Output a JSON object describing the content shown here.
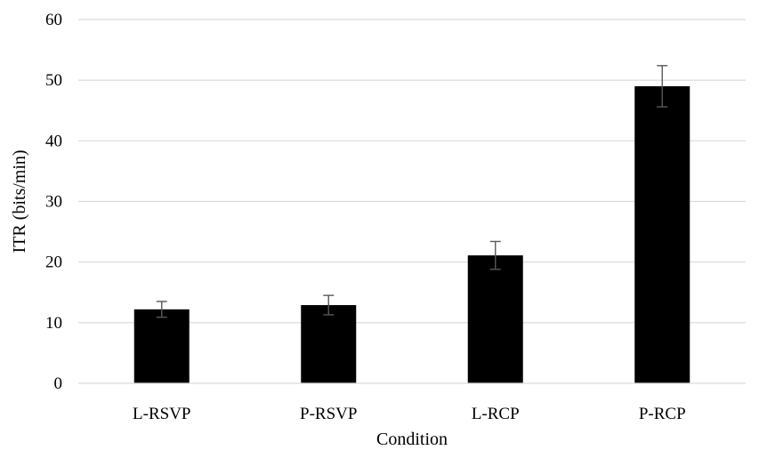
{
  "chart_data": {
    "type": "bar",
    "title": "",
    "xlabel": "Condition",
    "ylabel": "ITR (bits/min)",
    "categories": [
      "L-RSVP",
      "P-RSVP",
      "L-RCP",
      "P-RCP"
    ],
    "values": [
      12.2,
      12.9,
      21.1,
      49.0
    ],
    "error": [
      1.3,
      1.6,
      2.3,
      3.4
    ],
    "ylim": [
      0,
      60
    ],
    "yticks": [
      0,
      10,
      20,
      30,
      40,
      50,
      60
    ],
    "grid": true,
    "legend": "none",
    "colors": {
      "bar": "#000000",
      "grid": "#d9d9d9",
      "error_bar": "#595959"
    }
  }
}
